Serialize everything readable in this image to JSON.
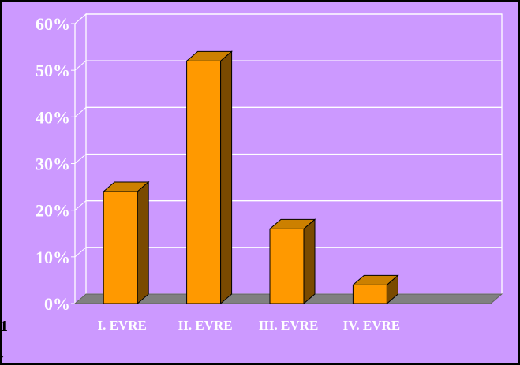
{
  "chart_data": {
    "type": "bar",
    "style": "3d-column",
    "categories": [
      "I. EVRE",
      "II. EVRE",
      "III. EVRE",
      "IV. EVRE"
    ],
    "values": [
      24,
      52,
      16,
      4
    ],
    "value_unit": "%",
    "ylim": [
      0,
      60
    ],
    "yticks": [
      "0%",
      "10%",
      "20%",
      "30%",
      "40%",
      "50%",
      "60%"
    ],
    "grid": true,
    "title": "",
    "xlabel": "",
    "ylabel": "",
    "colors": {
      "background": "#cc99ff",
      "bar_front": "#ff9900",
      "bar_top": "#cc8000",
      "bar_side": "#7a4a00",
      "floor": "#808080",
      "grid": "#ffffff",
      "labels": "#ffffff",
      "border": "#000000"
    }
  },
  "edge_fragments": [
    "1",
    "("
  ]
}
